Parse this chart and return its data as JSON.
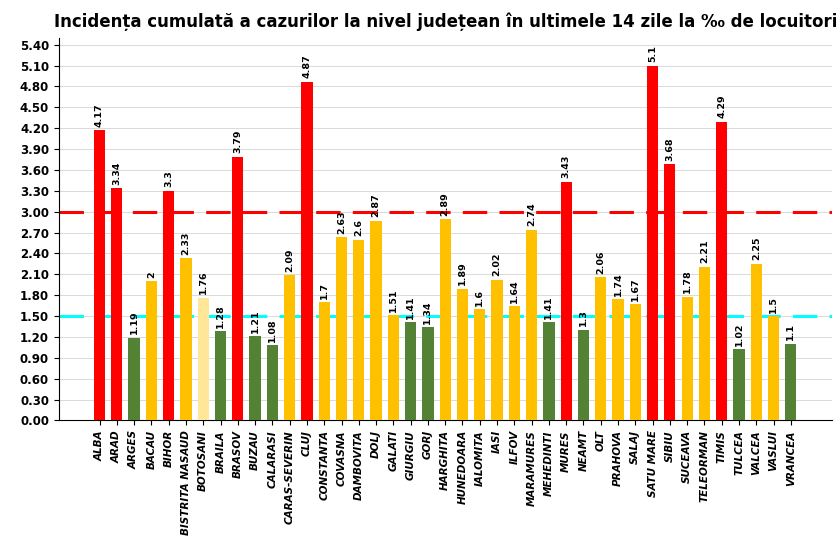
{
  "title": "Incidența cumulată a cazurilor la nivel județean în ultimele 14 zile la ‰ de locuitori",
  "categories": [
    "ALBA",
    "ARAD",
    "ARGES",
    "BACAU",
    "BIHOR",
    "BISTRITA NASAUD",
    "BOTOSANI",
    "BRAILA",
    "BRASOV",
    "BUZAU",
    "CALARASI",
    "CARAS-SEVERIN",
    "CLUJ",
    "CONSTANTA",
    "COVASNA",
    "DAMBOVITA",
    "DOLJ",
    "GALATI",
    "GIURGIU",
    "GORJ",
    "HARGHITA",
    "HUNEDOARA",
    "IALOMITA",
    "IASI",
    "ILFOV",
    "MARAMURES",
    "MEHEDINTI",
    "MURES",
    "NEAMT",
    "OLT",
    "PRAHOVA",
    "SALAJ",
    "SATU MARE",
    "SIBIU",
    "SUCEAVA",
    "TELEORMAN",
    "TIMIS",
    "TULCEA",
    "VALCEA",
    "VASLUI",
    "VRANCEA"
  ],
  "values": [
    4.17,
    3.34,
    1.19,
    2.0,
    3.3,
    2.33,
    1.76,
    1.28,
    3.79,
    1.21,
    1.08,
    2.09,
    4.87,
    1.7,
    2.63,
    2.6,
    2.87,
    1.51,
    1.41,
    1.34,
    2.89,
    1.89,
    1.6,
    2.02,
    1.64,
    2.74,
    1.41,
    3.43,
    1.3,
    2.06,
    1.74,
    1.67,
    5.1,
    3.68,
    1.78,
    2.21,
    4.29,
    1.02,
    2.25,
    1.5,
    1.1
  ],
  "label_values": [
    "4.17",
    "3.34",
    "1.19",
    "2",
    "3.3",
    "2.33",
    "1.76",
    "1.28",
    "3.79",
    "1.21",
    "1.08",
    "2.09",
    "4.87",
    "1.7",
    "2.63",
    "2.6",
    "2.87",
    "1.51",
    "1.41",
    "1.34",
    "2.89",
    "1.89",
    "1.6",
    "2.02",
    "1.64",
    "2.74",
    "1.41",
    "3.43",
    "1.3",
    "2.06",
    "1.74",
    "1.67",
    "5.1",
    "3.68",
    "1.78",
    "2.21",
    "4.29",
    "1.02",
    "2.25",
    "1.5",
    "1.1"
  ],
  "red_line": 3.0,
  "cyan_line": 1.5,
  "color_red": "#FF0000",
  "color_yellow": "#FFC000",
  "color_light_yellow": "#FFE699",
  "color_green": "#548235",
  "ylim_max": 5.5,
  "yticks": [
    0.0,
    0.3,
    0.6,
    0.9,
    1.2,
    1.5,
    1.8,
    2.1,
    2.4,
    2.7,
    3.0,
    3.3,
    3.6,
    3.9,
    4.2,
    4.5,
    4.8,
    5.1,
    5.4
  ],
  "bar_width": 0.65,
  "background_color": "#FFFFFF",
  "title_fontsize": 12,
  "label_fontsize": 6.8,
  "tick_fontsize": 8.5
}
